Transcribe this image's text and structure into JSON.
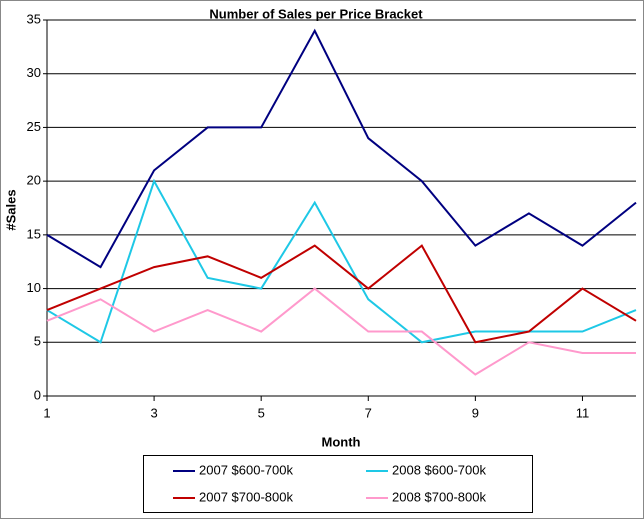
{
  "chart_data": {
    "type": "line",
    "title": "Number of Sales per Price Bracket",
    "x_label": "Month",
    "y_label": "#Sales",
    "x": [
      1,
      2,
      3,
      4,
      5,
      6,
      7,
      8,
      9,
      10,
      11,
      12
    ],
    "xlim": [
      1,
      12
    ],
    "xticks": [
      1,
      3,
      5,
      7,
      9,
      11
    ],
    "ylim": [
      0,
      35
    ],
    "yticks": [
      0,
      5,
      10,
      15,
      20,
      25,
      30,
      35
    ],
    "grid": true,
    "legend": "bottom",
    "series": [
      {
        "name": "2007 $600-700k",
        "color": "#000080",
        "values": [
          15,
          12,
          21,
          25,
          25,
          34,
          24,
          20,
          14,
          17,
          14,
          18
        ]
      },
      {
        "name": "2008 $600-700k",
        "color": "#1ec8e6",
        "values": [
          8,
          5,
          20,
          11,
          10,
          18,
          9,
          5,
          6,
          6,
          6,
          8
        ]
      },
      {
        "name": "2007 $700-800k",
        "color": "#c00000",
        "values": [
          8,
          10,
          12,
          13,
          11,
          14,
          10,
          14,
          5,
          6,
          10,
          7
        ]
      },
      {
        "name": "2008 $700-800k",
        "color": "#ff99cc",
        "values": [
          7,
          9,
          6,
          8,
          6,
          10,
          6,
          6,
          2,
          5,
          4,
          4
        ]
      }
    ]
  }
}
